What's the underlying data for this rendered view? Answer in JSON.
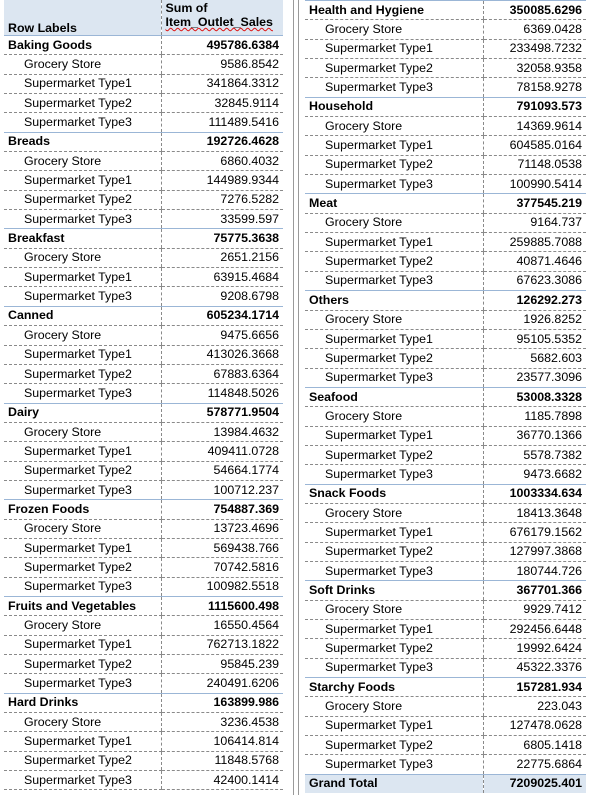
{
  "header": {
    "row_labels": "Row Labels",
    "sum_line1": "Sum of",
    "sum_line2": "Item_Outlet_Sales"
  },
  "categories": [
    {
      "name": "Baking Goods",
      "total": "495786.6384",
      "rows": [
        {
          "label": "Grocery Store",
          "value": "9586.8542"
        },
        {
          "label": "Supermarket Type1",
          "value": "341864.3312"
        },
        {
          "label": "Supermarket Type2",
          "value": "32845.9114"
        },
        {
          "label": "Supermarket Type3",
          "value": "111489.5416"
        }
      ]
    },
    {
      "name": "Breads",
      "total": "192726.4628",
      "rows": [
        {
          "label": "Grocery Store",
          "value": "6860.4032"
        },
        {
          "label": "Supermarket Type1",
          "value": "144989.9344"
        },
        {
          "label": "Supermarket Type2",
          "value": "7276.5282"
        },
        {
          "label": "Supermarket Type3",
          "value": "33599.597"
        }
      ]
    },
    {
      "name": "Breakfast",
      "total": "75775.3638",
      "rows": [
        {
          "label": "Grocery Store",
          "value": "2651.2156"
        },
        {
          "label": "Supermarket Type1",
          "value": "63915.4684"
        },
        {
          "label": "Supermarket Type3",
          "value": "9208.6798"
        }
      ]
    },
    {
      "name": "Canned",
      "total": "605234.1714",
      "rows": [
        {
          "label": "Grocery Store",
          "value": "9475.6656"
        },
        {
          "label": "Supermarket Type1",
          "value": "413026.3668"
        },
        {
          "label": "Supermarket Type2",
          "value": "67883.6364"
        },
        {
          "label": "Supermarket Type3",
          "value": "114848.5026"
        }
      ]
    },
    {
      "name": "Dairy",
      "total": "578771.9504",
      "rows": [
        {
          "label": "Grocery Store",
          "value": "13984.4632"
        },
        {
          "label": "Supermarket Type1",
          "value": "409411.0728"
        },
        {
          "label": "Supermarket Type2",
          "value": "54664.1774"
        },
        {
          "label": "Supermarket Type3",
          "value": "100712.237"
        }
      ]
    },
    {
      "name": "Frozen Foods",
      "total": "754887.369",
      "rows": [
        {
          "label": "Grocery Store",
          "value": "13723.4696"
        },
        {
          "label": "Supermarket Type1",
          "value": "569438.766"
        },
        {
          "label": "Supermarket Type2",
          "value": "70742.5816"
        },
        {
          "label": "Supermarket Type3",
          "value": "100982.5518"
        }
      ]
    },
    {
      "name": "Fruits and Vegetables",
      "total": "1115600.498",
      "rows": [
        {
          "label": "Grocery Store",
          "value": "16550.4564"
        },
        {
          "label": "Supermarket Type1",
          "value": "762713.1822"
        },
        {
          "label": "Supermarket Type2",
          "value": "95845.239"
        },
        {
          "label": "Supermarket Type3",
          "value": "240491.6206"
        }
      ]
    },
    {
      "name": "Hard Drinks",
      "total": "163899.986",
      "rows": [
        {
          "label": "Grocery Store",
          "value": "3236.4538"
        },
        {
          "label": "Supermarket Type1",
          "value": "106414.814"
        },
        {
          "label": "Supermarket Type2",
          "value": "11848.5768"
        },
        {
          "label": "Supermarket Type3",
          "value": "42400.1414"
        }
      ]
    },
    {
      "name": "Health and Hygiene",
      "total": "350085.6296",
      "rows": [
        {
          "label": "Grocery Store",
          "value": "6369.0428"
        },
        {
          "label": "Supermarket Type1",
          "value": "233498.7232"
        },
        {
          "label": "Supermarket Type2",
          "value": "32058.9358"
        },
        {
          "label": "Supermarket Type3",
          "value": "78158.9278"
        }
      ]
    },
    {
      "name": "Household",
      "total": "791093.573",
      "rows": [
        {
          "label": "Grocery Store",
          "value": "14369.9614"
        },
        {
          "label": "Supermarket Type1",
          "value": "604585.0164"
        },
        {
          "label": "Supermarket Type2",
          "value": "71148.0538"
        },
        {
          "label": "Supermarket Type3",
          "value": "100990.5414"
        }
      ]
    },
    {
      "name": "Meat",
      "total": "377545.219",
      "rows": [
        {
          "label": "Grocery Store",
          "value": "9164.737"
        },
        {
          "label": "Supermarket Type1",
          "value": "259885.7088"
        },
        {
          "label": "Supermarket Type2",
          "value": "40871.4646"
        },
        {
          "label": "Supermarket Type3",
          "value": "67623.3086"
        }
      ]
    },
    {
      "name": "Others",
      "total": "126292.273",
      "rows": [
        {
          "label": "Grocery Store",
          "value": "1926.8252"
        },
        {
          "label": "Supermarket Type1",
          "value": "95105.5352"
        },
        {
          "label": "Supermarket Type2",
          "value": "5682.603"
        },
        {
          "label": "Supermarket Type3",
          "value": "23577.3096"
        }
      ]
    },
    {
      "name": "Seafood",
      "total": "53008.3328",
      "rows": [
        {
          "label": "Grocery Store",
          "value": "1185.7898"
        },
        {
          "label": "Supermarket Type1",
          "value": "36770.1366"
        },
        {
          "label": "Supermarket Type2",
          "value": "5578.7382"
        },
        {
          "label": "Supermarket Type3",
          "value": "9473.6682"
        }
      ]
    },
    {
      "name": "Snack Foods",
      "total": "1003334.634",
      "rows": [
        {
          "label": "Grocery Store",
          "value": "18413.3648"
        },
        {
          "label": "Supermarket Type1",
          "value": "676179.1562"
        },
        {
          "label": "Supermarket Type2",
          "value": "127997.3868"
        },
        {
          "label": "Supermarket Type3",
          "value": "180744.726"
        }
      ]
    },
    {
      "name": "Soft Drinks",
      "total": "367701.366",
      "rows": [
        {
          "label": "Grocery Store",
          "value": "9929.7412"
        },
        {
          "label": "Supermarket Type1",
          "value": "292456.6448"
        },
        {
          "label": "Supermarket Type2",
          "value": "19992.6424"
        },
        {
          "label": "Supermarket Type3",
          "value": "45322.3376"
        }
      ]
    },
    {
      "name": "Starchy Foods",
      "total": "157281.934",
      "rows": [
        {
          "label": "Grocery Store",
          "value": "223.043"
        },
        {
          "label": "Supermarket Type1",
          "value": "127478.0628"
        },
        {
          "label": "Supermarket Type2",
          "value": "6805.1418"
        },
        {
          "label": "Supermarket Type3",
          "value": "22775.6864"
        }
      ]
    }
  ],
  "grand_total": {
    "label": "Grand Total",
    "value": "7209025.401"
  }
}
